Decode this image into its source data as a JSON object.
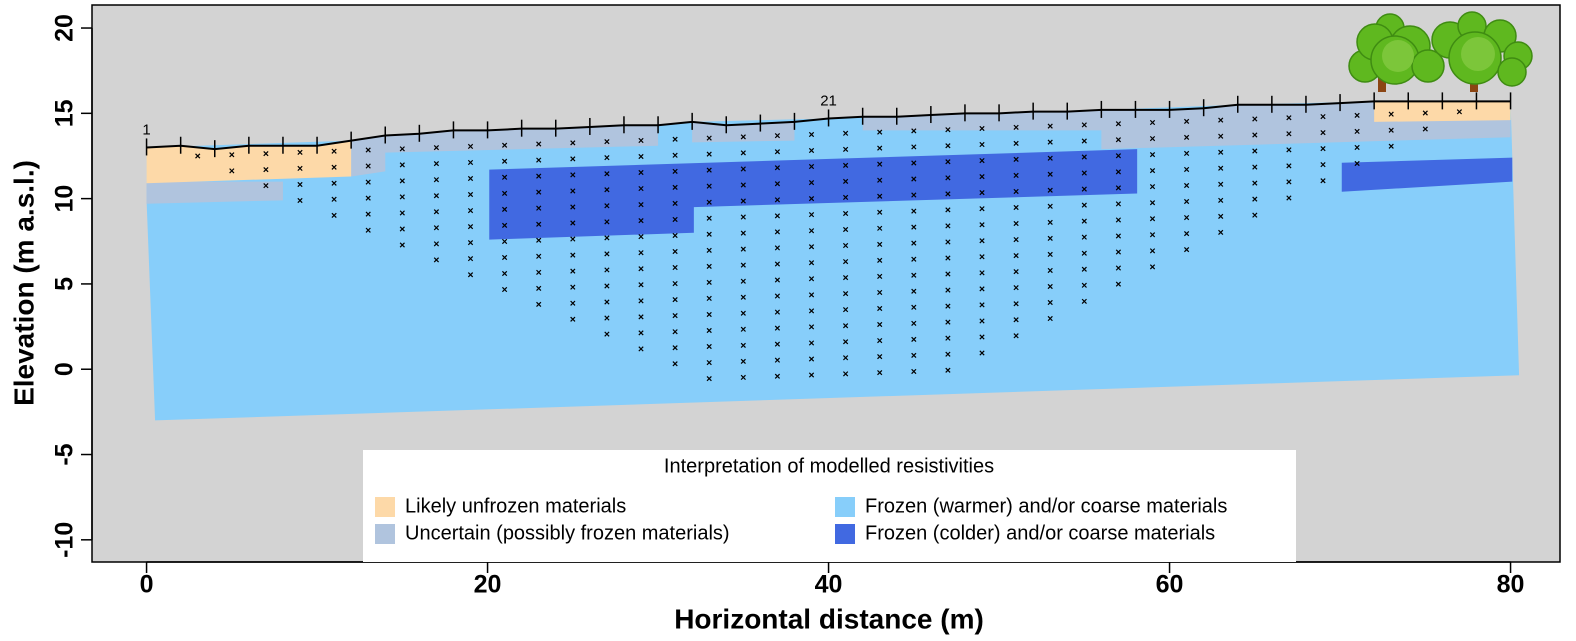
{
  "chart_data": {
    "type": "section",
    "xlabel": "Horizontal distance (m)",
    "ylabel": "Elevation (m a.s.l.)",
    "xlim": [
      -3.2,
      82.9
    ],
    "ylim": [
      -11.3,
      21.35
    ],
    "xticks": [
      0,
      20,
      40,
      60,
      80
    ],
    "yticks": [
      -10,
      -5,
      0,
      5,
      10,
      15,
      20
    ],
    "background": "#d3d3d3",
    "legend": {
      "title": "Interpretation of modelled resistivities",
      "position": "bottom"
    },
    "regions": [
      {
        "name": "Likely unfrozen materials",
        "color": "#fdd9a8",
        "polygons": [
          {
            "x": [
              0,
              2,
              4,
              6,
              8,
              10,
              12,
              12,
              0
            ],
            "y": [
              13.0,
              13.1,
              12.9,
              13.1,
              13.1,
              13.1,
              13.4,
              11.3,
              10.9
            ]
          },
          {
            "x": [
              72,
              80,
              80,
              72
            ],
            "y": [
              15.7,
              15.7,
              14.6,
              14.5
            ]
          }
        ]
      },
      {
        "name": "Uncertain (possibly frozen materials)",
        "color": "#b0c4de",
        "polygons": [
          {
            "x": [
              0,
              8,
              8,
              0
            ],
            "y": [
              11.0,
              11.0,
              9.9,
              9.7
            ]
          },
          {
            "x": [
              12,
              14,
              16,
              18,
              20,
              22,
              24,
              26,
              28,
              30,
              30,
              14,
              14,
              12
            ],
            "y": [
              13.4,
              13.7,
              13.8,
              14.0,
              14.0,
              14.1,
              14.1,
              14.2,
              14.3,
              14.3,
              13.1,
              12.7,
              11.6,
              11.3
            ]
          },
          {
            "x": [
              32,
              34,
              36,
              38,
              38,
              32
            ],
            "y": [
              14.5,
              14.3,
              14.4,
              14.5,
              13.4,
              13.3
            ]
          },
          {
            "x": [
              42,
              44,
              46,
              48,
              50,
              52,
              54,
              56,
              58,
              60,
              62,
              64,
              66,
              68,
              70,
              72,
              74,
              76,
              78,
              80,
              80,
              56,
              56,
              42
            ],
            "y": [
              14.8,
              14.8,
              14.9,
              15.0,
              15.0,
              15.1,
              15.1,
              15.2,
              15.2,
              15.2,
              15.3,
              15.5,
              15.5,
              15.5,
              15.6,
              15.7,
              15.7,
              15.7,
              15.7,
              15.7,
              13.6,
              12.9,
              14.0,
              14.0
            ]
          }
        ]
      },
      {
        "name": "Frozen (warmer) and/or coarse materials",
        "color": "#87cefa",
        "polygons": [
          {
            "x": [
              0,
              12,
              20,
              30,
              32,
              40,
              56,
              64,
              72,
              80,
              80.5,
              0.5,
              0
            ],
            "y": [
              13.0,
              13.4,
              14.0,
              14.3,
              14.5,
              14.7,
              15.2,
              15.5,
              15.7,
              15.7,
              -0.35,
              -3.0,
              9.9
            ]
          }
        ]
      },
      {
        "name": "Frozen (colder) and/or coarse materials",
        "color": "#4169e1",
        "polygons": [
          {
            "x": [
              20.1,
              58.1,
              58.1,
              32.1,
              32.1,
              20.1
            ],
            "y": [
              11.7,
              12.9,
              10.3,
              9.5,
              8.0,
              7.6
            ]
          },
          {
            "x": [
              70.1,
              80.1,
              80.1,
              70.1
            ],
            "y": [
              12.1,
              12.4,
              11.0,
              10.4
            ]
          }
        ]
      }
    ],
    "surface": {
      "color": "#000000",
      "x": [
        0,
        2,
        4,
        6,
        8,
        10,
        12,
        14,
        16,
        18,
        20,
        22,
        24,
        26,
        28,
        30,
        32,
        34,
        36,
        38,
        40,
        42,
        44,
        46,
        48,
        50,
        52,
        54,
        56,
        58,
        60,
        62,
        64,
        66,
        68,
        70,
        72,
        74,
        76,
        78,
        80
      ],
      "y": [
        13.0,
        13.1,
        12.9,
        13.1,
        13.1,
        13.1,
        13.4,
        13.7,
        13.8,
        14.0,
        14.0,
        14.1,
        14.1,
        14.2,
        14.3,
        14.3,
        14.5,
        14.3,
        14.4,
        14.5,
        14.7,
        14.8,
        14.8,
        14.9,
        15.0,
        15.0,
        15.1,
        15.1,
        15.2,
        15.2,
        15.2,
        15.3,
        15.5,
        15.5,
        15.5,
        15.6,
        15.7,
        15.7,
        15.7,
        15.7,
        15.7
      ]
    },
    "electrode_labels": {
      "x": [
        0,
        40
      ],
      "labels": [
        "1",
        "21"
      ]
    },
    "measurement_points": [
      {
        "x": [
          3,
          5,
          7,
          9,
          11,
          13,
          15,
          17,
          19,
          21,
          23,
          25,
          27,
          29,
          31,
          33,
          35,
          37,
          39,
          41,
          43,
          45,
          47,
          49,
          51,
          53,
          55,
          57,
          59,
          61,
          63,
          65,
          67,
          69,
          71,
          73,
          75,
          77
        ],
        "y": [
          12.5,
          12.57,
          12.64,
          12.71,
          12.78,
          12.85,
          12.92,
          12.99,
          13.06,
          13.13,
          13.2,
          13.27,
          13.34,
          13.41,
          13.48,
          13.55,
          13.62,
          13.69,
          13.76,
          13.83,
          13.9,
          13.97,
          14.04,
          14.11,
          14.18,
          14.25,
          14.32,
          14.39,
          14.46,
          14.53,
          14.6,
          14.67,
          14.74,
          14.81,
          14.88,
          14.95,
          15.02,
          15.09
        ]
      },
      {
        "x": [
          5,
          7,
          9,
          11,
          13,
          15,
          17,
          19,
          21,
          23,
          25,
          27,
          29,
          31,
          33,
          35,
          37,
          39,
          41,
          43,
          45,
          47,
          49,
          51,
          53,
          55,
          57,
          59,
          61,
          63,
          65,
          67,
          69,
          71,
          73,
          75
        ],
        "y": [
          11.63,
          11.7,
          11.77,
          11.84,
          11.91,
          11.98,
          12.05,
          12.12,
          12.19,
          12.26,
          12.33,
          12.4,
          12.47,
          12.54,
          12.61,
          12.68,
          12.75,
          12.82,
          12.89,
          12.96,
          13.03,
          13.1,
          13.17,
          13.24,
          13.31,
          13.38,
          13.45,
          13.52,
          13.59,
          13.66,
          13.73,
          13.8,
          13.87,
          13.94,
          14.01,
          14.08
        ]
      },
      {
        "x": [
          7,
          9,
          11,
          13,
          15,
          17,
          19,
          21,
          23,
          25,
          27,
          29,
          31,
          33,
          35,
          37,
          39,
          41,
          43,
          45,
          47,
          49,
          51,
          53,
          55,
          57,
          59,
          61,
          63,
          65,
          67,
          69,
          71,
          73
        ],
        "y": [
          10.76,
          10.83,
          10.9,
          10.97,
          11.04,
          11.11,
          11.18,
          11.25,
          11.32,
          11.39,
          11.46,
          11.53,
          11.6,
          11.67,
          11.74,
          11.81,
          11.88,
          11.95,
          12.02,
          12.09,
          12.16,
          12.23,
          12.3,
          12.37,
          12.44,
          12.51,
          12.58,
          12.65,
          12.72,
          12.79,
          12.86,
          12.93,
          13.0,
          13.07
        ]
      },
      {
        "x": [
          9,
          11,
          13,
          15,
          17,
          19,
          21,
          23,
          25,
          27,
          29,
          31,
          33,
          35,
          37,
          39,
          41,
          43,
          45,
          47,
          49,
          51,
          53,
          55,
          57,
          59,
          61,
          63,
          65,
          67,
          69,
          71
        ],
        "y": [
          9.89,
          9.96,
          10.03,
          10.1,
          10.17,
          10.24,
          10.31,
          10.38,
          10.45,
          10.52,
          10.59,
          10.66,
          10.73,
          10.8,
          10.87,
          10.94,
          11.01,
          11.08,
          11.15,
          11.22,
          11.29,
          11.36,
          11.43,
          11.5,
          11.57,
          11.64,
          11.71,
          11.78,
          11.85,
          11.92,
          11.99,
          12.06
        ]
      },
      {
        "x": [
          11,
          13,
          15,
          17,
          19,
          21,
          23,
          25,
          27,
          29,
          31,
          33,
          35,
          37,
          39,
          41,
          43,
          45,
          47,
          49,
          51,
          53,
          55,
          57,
          59,
          61,
          63,
          65,
          67,
          69
        ],
        "y": [
          9.02,
          9.09,
          9.16,
          9.23,
          9.3,
          9.37,
          9.44,
          9.51,
          9.58,
          9.65,
          9.72,
          9.79,
          9.86,
          9.93,
          10.0,
          10.07,
          10.14,
          10.21,
          10.28,
          10.35,
          10.42,
          10.49,
          10.56,
          10.63,
          10.7,
          10.77,
          10.84,
          10.91,
          10.98,
          11.05
        ]
      },
      {
        "x": [
          13,
          15,
          17,
          19,
          21,
          23,
          25,
          27,
          29,
          31,
          33,
          35,
          37,
          39,
          41,
          43,
          45,
          47,
          49,
          51,
          53,
          55,
          57,
          59,
          61,
          63,
          65,
          67
        ],
        "y": [
          8.15,
          8.22,
          8.29,
          8.36,
          8.43,
          8.5,
          8.57,
          8.64,
          8.71,
          8.78,
          8.85,
          8.92,
          8.99,
          9.06,
          9.13,
          9.2,
          9.27,
          9.34,
          9.41,
          9.48,
          9.55,
          9.62,
          9.69,
          9.76,
          9.83,
          9.9,
          9.97,
          10.04
        ]
      },
      {
        "x": [
          15,
          17,
          19,
          21,
          23,
          25,
          27,
          29,
          31,
          33,
          35,
          37,
          39,
          41,
          43,
          45,
          47,
          49,
          51,
          53,
          55,
          57,
          59,
          61,
          63,
          65
        ],
        "y": [
          7.28,
          7.35,
          7.42,
          7.49,
          7.56,
          7.63,
          7.7,
          7.77,
          7.84,
          7.91,
          7.98,
          8.05,
          8.12,
          8.19,
          8.26,
          8.33,
          8.4,
          8.47,
          8.54,
          8.61,
          8.68,
          8.75,
          8.82,
          8.89,
          8.96,
          9.03
        ]
      },
      {
        "x": [
          17,
          19,
          21,
          23,
          25,
          27,
          29,
          31,
          33,
          35,
          37,
          39,
          41,
          43,
          45,
          47,
          49,
          51,
          53,
          55,
          57,
          59,
          61,
          63
        ],
        "y": [
          6.41,
          6.48,
          6.55,
          6.62,
          6.69,
          6.76,
          6.83,
          6.9,
          6.97,
          7.04,
          7.11,
          7.18,
          7.25,
          7.32,
          7.39,
          7.46,
          7.53,
          7.6,
          7.67,
          7.74,
          7.81,
          7.88,
          7.95,
          8.02
        ]
      },
      {
        "x": [
          19,
          21,
          23,
          25,
          27,
          29,
          31,
          33,
          35,
          37,
          39,
          41,
          43,
          45,
          47,
          49,
          51,
          53,
          55,
          57,
          59,
          61
        ],
        "y": [
          5.54,
          5.61,
          5.68,
          5.75,
          5.82,
          5.89,
          5.96,
          6.03,
          6.1,
          6.17,
          6.24,
          6.31,
          6.38,
          6.45,
          6.52,
          6.59,
          6.66,
          6.73,
          6.8,
          6.87,
          6.94,
          7.01
        ]
      },
      {
        "x": [
          21,
          23,
          25,
          27,
          29,
          31,
          33,
          35,
          37,
          39,
          41,
          43,
          45,
          47,
          49,
          51,
          53,
          55,
          57,
          59
        ],
        "y": [
          4.67,
          4.74,
          4.81,
          4.88,
          4.95,
          5.02,
          5.09,
          5.16,
          5.23,
          5.3,
          5.37,
          5.44,
          5.51,
          5.58,
          5.65,
          5.72,
          5.79,
          5.86,
          5.93,
          6.0
        ]
      },
      {
        "x": [
          23,
          25,
          27,
          29,
          31,
          33,
          35,
          37,
          39,
          41,
          43,
          45,
          47,
          49,
          51,
          53,
          55,
          57
        ],
        "y": [
          3.8,
          3.87,
          3.94,
          4.01,
          4.08,
          4.15,
          4.22,
          4.29,
          4.36,
          4.43,
          4.5,
          4.57,
          4.64,
          4.71,
          4.78,
          4.85,
          4.92,
          4.99
        ]
      },
      {
        "x": [
          25,
          27,
          29,
          31,
          33,
          35,
          37,
          39,
          41,
          43,
          45,
          47,
          49,
          51,
          53,
          55
        ],
        "y": [
          2.93,
          3.0,
          3.07,
          3.14,
          3.21,
          3.28,
          3.35,
          3.42,
          3.49,
          3.56,
          3.63,
          3.7,
          3.77,
          3.84,
          3.91,
          3.98
        ]
      },
      {
        "x": [
          27,
          29,
          31,
          33,
          35,
          37,
          39,
          41,
          43,
          45,
          47,
          49,
          51,
          53
        ],
        "y": [
          2.06,
          2.13,
          2.2,
          2.27,
          2.34,
          2.41,
          2.48,
          2.55,
          2.62,
          2.69,
          2.76,
          2.83,
          2.9,
          2.97
        ]
      },
      {
        "x": [
          29,
          31,
          33,
          35,
          37,
          39,
          41,
          43,
          45,
          47,
          49,
          51
        ],
        "y": [
          1.19,
          1.26,
          1.33,
          1.4,
          1.47,
          1.54,
          1.61,
          1.68,
          1.75,
          1.82,
          1.89,
          1.96
        ]
      },
      {
        "x": [
          31,
          33,
          35,
          37,
          39,
          41,
          43,
          45,
          47,
          49
        ],
        "y": [
          0.32,
          0.39,
          0.46,
          0.53,
          0.6,
          0.67,
          0.74,
          0.81,
          0.88,
          0.95
        ]
      },
      {
        "x": [
          33,
          35,
          37,
          39,
          41,
          43,
          45,
          47
        ],
        "y": [
          -0.55,
          -0.48,
          -0.41,
          -0.34,
          -0.27,
          -0.2,
          -0.13,
          -0.06
        ]
      }
    ]
  }
}
